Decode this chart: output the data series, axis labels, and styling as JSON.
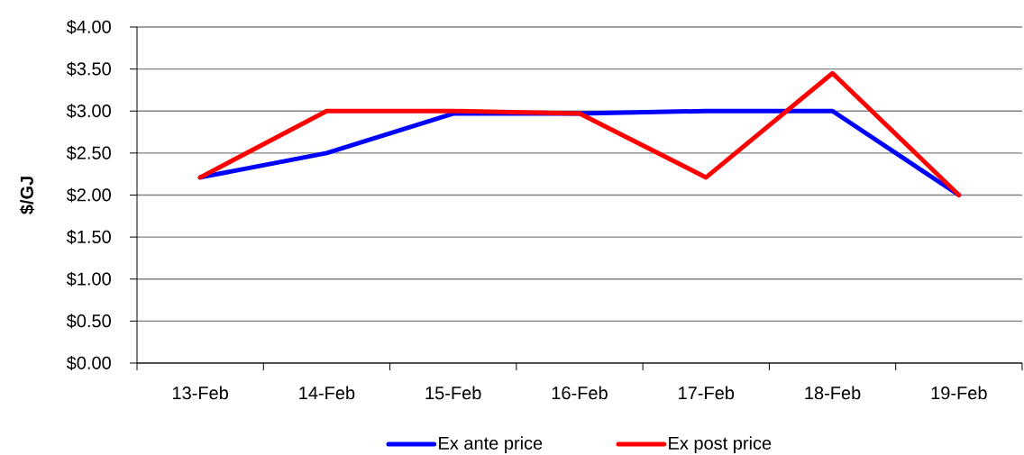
{
  "chart_data": {
    "type": "line",
    "ylabel": "$/GJ",
    "categories": [
      "13-Feb",
      "14-Feb",
      "15-Feb",
      "16-Feb",
      "17-Feb",
      "18-Feb",
      "19-Feb"
    ],
    "series": [
      {
        "name": "Ex ante price",
        "color": "#0000ff",
        "values": [
          2.21,
          2.5,
          2.97,
          2.97,
          3.0,
          3.0,
          2.0
        ]
      },
      {
        "name": "Ex post price",
        "color": "#ff0000",
        "values": [
          2.21,
          3.0,
          3.0,
          2.97,
          2.21,
          3.45,
          2.0
        ]
      }
    ],
    "ylim": [
      0,
      4
    ],
    "yticks": [
      {
        "value": 0,
        "label": "$0.00"
      },
      {
        "value": 0.5,
        "label": "$0.50"
      },
      {
        "value": 1,
        "label": "$1.00"
      },
      {
        "value": 1.5,
        "label": "$1.50"
      },
      {
        "value": 2,
        "label": "$2.00"
      },
      {
        "value": 2.5,
        "label": "$2.50"
      },
      {
        "value": 3,
        "label": "$3.00"
      },
      {
        "value": 3.5,
        "label": "$3.50"
      },
      {
        "value": 4,
        "label": "$4.00"
      }
    ],
    "grid": "y",
    "legend": "bottom"
  }
}
